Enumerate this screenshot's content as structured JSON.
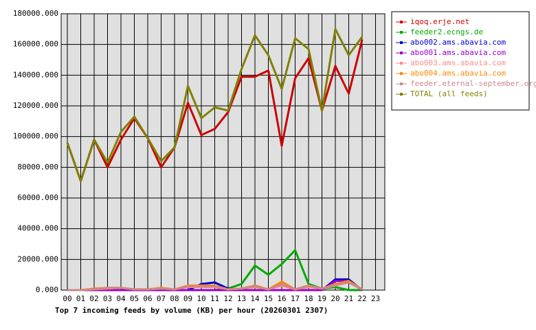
{
  "chart_data": {
    "type": "line",
    "title": "Top 7 incoming feeds by volume (KB) per hour (20260301 2307)",
    "categories": [
      "00",
      "01",
      "02",
      "03",
      "04",
      "05",
      "06",
      "07",
      "08",
      "09",
      "10",
      "11",
      "12",
      "13",
      "14",
      "15",
      "16",
      "17",
      "18",
      "19",
      "20",
      "21",
      "22",
      "23"
    ],
    "ylim": [
      0,
      180000
    ],
    "yticks": [
      {
        "value": 0,
        "label": "0.000"
      },
      {
        "value": 20000,
        "label": "20000.000"
      },
      {
        "value": 40000,
        "label": "40000.000"
      },
      {
        "value": 60000,
        "label": "60000.000"
      },
      {
        "value": 80000,
        "label": "80000.000"
      },
      {
        "value": 100000,
        "label": "100000.000"
      },
      {
        "value": 120000,
        "label": "120000.000"
      },
      {
        "value": 140000,
        "label": "140000.000"
      },
      {
        "value": 160000,
        "label": "160000.000"
      },
      {
        "value": 180000,
        "label": "180000.000"
      }
    ],
    "grid": true,
    "legend": "right",
    "series": [
      {
        "name": "iqoq.erje.net",
        "color": "#cc0000",
        "values": [
          96000,
          71000,
          98000,
          80000,
          98000,
          112000,
          99000,
          80000,
          93000,
          122000,
          101000,
          105000,
          116000,
          139000,
          139000,
          143000,
          94000,
          138000,
          151000,
          117000,
          146000,
          128000,
          163000,
          null
        ]
      },
      {
        "name": "feeder2.ecngs.de",
        "color": "#00aa00",
        "values": [
          0,
          0,
          0,
          0,
          0,
          0,
          0,
          0,
          0,
          0,
          0,
          0,
          1000,
          4000,
          16000,
          10000,
          17000,
          26000,
          4000,
          1000,
          2000,
          0,
          0,
          null
        ]
      },
      {
        "name": "abo002.ams.abavia.com",
        "color": "#0000cc",
        "values": [
          0,
          0,
          0,
          0,
          0,
          0,
          0,
          0,
          0,
          0,
          4000,
          5000,
          1000,
          0,
          0,
          0,
          0,
          0,
          0,
          0,
          7000,
          7000,
          0,
          null
        ]
      },
      {
        "name": "abo001.ams.abavia.com",
        "color": "#9900cc",
        "values": [
          0,
          0,
          0,
          0,
          0,
          0,
          0,
          0,
          0,
          0,
          0,
          0,
          0,
          0,
          0,
          0,
          0,
          0,
          0,
          0,
          6000,
          6000,
          0,
          null
        ]
      },
      {
        "name": "abo003.ams.abavia.com",
        "color": "#ff8888",
        "values": [
          0,
          0,
          500,
          1000,
          1500,
          500,
          500,
          1000,
          500,
          2000,
          2000,
          2000,
          500,
          1000,
          2000,
          500,
          3000,
          500,
          2000,
          1000,
          3000,
          5000,
          500,
          null
        ]
      },
      {
        "name": "abo004.ams.abavia.com",
        "color": "#ff8800",
        "values": [
          0,
          0,
          1000,
          1500,
          1500,
          500,
          500,
          1500,
          500,
          3000,
          3000,
          3000,
          500,
          1000,
          3000,
          500,
          5500,
          500,
          3000,
          1000,
          4000,
          6000,
          500,
          null
        ]
      },
      {
        "name": "feeder.eternal-september.org",
        "color": "#cc8888",
        "values": [
          0,
          0,
          500,
          1500,
          1500,
          500,
          500,
          1000,
          500,
          2500,
          2500,
          2500,
          500,
          1000,
          2500,
          500,
          4000,
          500,
          3000,
          1000,
          3500,
          5000,
          500,
          null
        ]
      },
      {
        "name": "TOTAL (all feeds)",
        "color": "#808000",
        "values": [
          96000,
          71000,
          98000,
          83000,
          103000,
          113000,
          99000,
          84000,
          93000,
          133000,
          112000,
          119000,
          117000,
          144000,
          166000,
          153000,
          131000,
          164000,
          157000,
          117000,
          170000,
          153000,
          165000,
          null
        ]
      }
    ]
  }
}
